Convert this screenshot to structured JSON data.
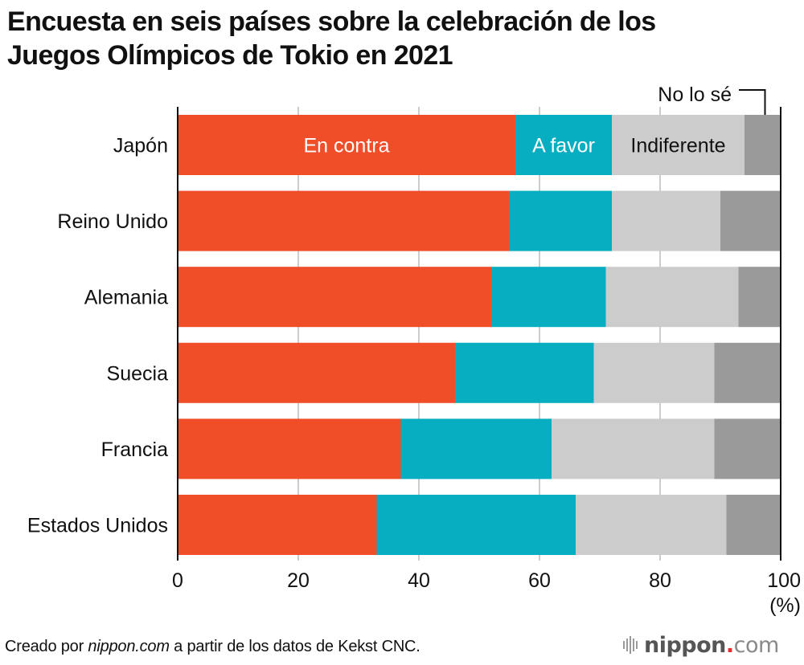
{
  "header": {
    "title_line1": "Encuesta en seis países sobre la celebración de los",
    "title_line2": "Juegos Olímpicos de Tokio en 2021"
  },
  "chart_data": {
    "type": "bar",
    "orientation": "horizontal",
    "stacked": true,
    "title": "Encuesta en seis países sobre la celebración de los Juegos Olímpicos de Tokio en 2021",
    "xlabel": "",
    "ylabel": "",
    "unit_label": "(%)",
    "xlim": [
      0,
      100
    ],
    "xticks": [
      0,
      20,
      40,
      60,
      80,
      100
    ],
    "xtick_labels": [
      "0",
      "20",
      "40",
      "60",
      "80",
      "100"
    ],
    "grid": true,
    "categories": [
      "Japón",
      "Reino Unido",
      "Alemania",
      "Suecia",
      "Francia",
      "Estados Unidos"
    ],
    "series": [
      {
        "name": "En contra",
        "color": "#f04e29",
        "label_color": "#ffffff",
        "values": [
          56,
          55,
          52,
          46,
          37,
          33
        ]
      },
      {
        "name": "A favor",
        "color": "#07adc0",
        "label_color": "#ffffff",
        "values": [
          16,
          17,
          19,
          23,
          25,
          33
        ]
      },
      {
        "name": "Indiferente",
        "color": "#cccccc",
        "label_color": "#111111",
        "values": [
          22,
          18,
          22,
          20,
          27,
          25
        ]
      },
      {
        "name": "No lo sé",
        "color": "#9a9a9a",
        "label_color": "#111111",
        "values": [
          6,
          10,
          7,
          11,
          11,
          9
        ]
      }
    ],
    "legend": "inline labels in first bar; 'No lo sé' as callout top-right"
  },
  "footer": {
    "source_prefix": "Creado por ",
    "source_italic": "nippon.com",
    "source_suffix": " a partir de los datos de Kekst CNC.",
    "logo_icon": "sound-bars-icon",
    "logo_brand": "nippon",
    "logo_dot": ".",
    "logo_tld": "com"
  }
}
